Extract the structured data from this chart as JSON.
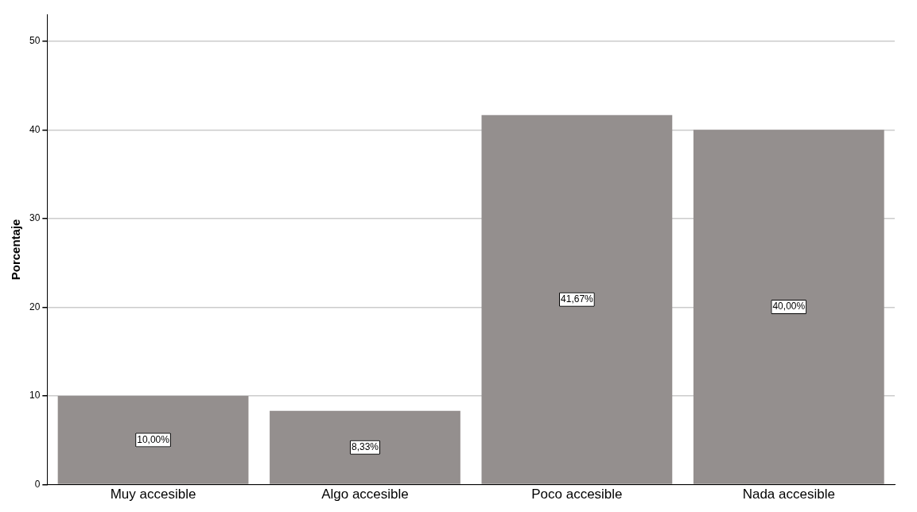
{
  "chart_data": {
    "type": "bar",
    "ylabel": "Porcentaje",
    "categories": [
      "Muy accesible",
      "Algo accesible",
      "Poco accesible",
      "Nada accesible"
    ],
    "values": [
      10,
      8.33,
      41.67,
      40
    ],
    "value_labels": [
      "10,00%",
      "8,33%",
      "41,67%",
      "40,00%"
    ],
    "color": "#948f8e",
    "ylim": [
      0,
      53
    ],
    "yticks": [
      0,
      10,
      20,
      30,
      40,
      50
    ],
    "grid": "y",
    "legend": false
  }
}
